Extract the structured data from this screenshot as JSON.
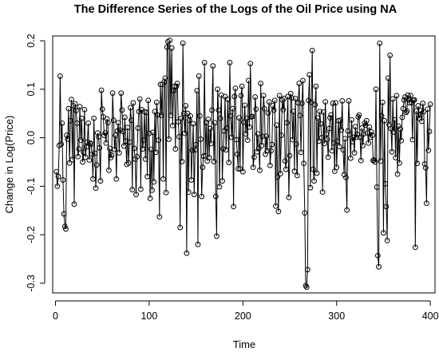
{
  "chart_data": {
    "type": "line",
    "title": "The Difference Series of the Logs of the Oil Price using NA",
    "xlabel": "Time",
    "ylabel": "Change in Log(Price)",
    "xlim": [
      -3,
      405
    ],
    "ylim": [
      -0.32,
      0.21
    ],
    "x_ticks": [
      0,
      100,
      200,
      300,
      400
    ],
    "y_ticks": [
      -0.3,
      -0.2,
      -0.1,
      0.0,
      0.1,
      0.2
    ],
    "x_tick_labels": [
      "0",
      "100",
      "200",
      "300",
      "400"
    ],
    "y_tick_labels": [
      "-0.3",
      "-0.2",
      "-0.1",
      "0.0",
      "0.1",
      "0.2"
    ],
    "grid": false,
    "markers": "open-circle",
    "series": [
      {
        "color": "#000000",
        "x_start": 1,
        "x_step": 1,
        "values": [
          -0.07,
          -0.1,
          -0.08,
          -0.016,
          0.127,
          -0.013,
          0.03,
          -0.087,
          -0.157,
          -0.183,
          -0.188,
          0.005,
          -0.003,
          0.06,
          -0.052,
          0.035,
          0.079,
          -0.045,
          0.066,
          -0.137,
          0.07,
          0.056,
          0.03,
          -0.039,
          -0.023,
          0.064,
          -0.005,
          0.04,
          -0.05,
          -0.03,
          0.058,
          -0.04,
          -0.019,
          -0.009,
          0.03,
          -0.046,
          -0.011,
          -0.013,
          -0.034,
          -0.085,
          0.04,
          -0.032,
          -0.104,
          -0.056,
          0.01,
          0.002,
          -0.021,
          -0.089,
          0.098,
          0.059,
          0.043,
          0.005,
          0.01,
          -0.011,
          0.039,
          0.031,
          -0.067,
          -0.022,
          -0.041,
          -0.036,
          0.092,
          0.036,
          -0.024,
          0.005,
          -0.085,
          0.014,
          0.031,
          -0.031,
          0.016,
          0.092,
          0.057,
          0.013,
          -0.017,
          0.042,
          -0.007,
          -0.055,
          0.021,
          -0.052,
          -0.009,
          0.062,
          0.036,
          -0.107,
          0.072,
          -0.022,
          -0.044,
          -0.117,
          -0.039,
          0.02,
          0.054,
          0.08,
          -0.106,
          0.058,
          -0.023,
          -0.005,
          0.054,
          -0.044,
          0.052,
          -0.08,
          0.077,
          0.009,
          -0.125,
          -0.024,
          -0.108,
          0.011,
          -0.091,
          0.054,
          -0.03,
          0.073,
          0.047,
          -0.005,
          -0.163,
          0.11,
          0.046,
          0.11,
          -0.085,
          0.115,
          0.123,
          -0.113,
          0.187,
          0.198,
          -0.003,
          0.201,
          0.046,
          0.185,
          0.025,
          0.097,
          0.106,
          -0.023,
          0.106,
          0.112,
          0.033,
          0.002,
          -0.185,
          0.04,
          -0.049,
          0.195,
          0.05,
          0.009,
          0.066,
          -0.238,
          0.05,
          -0.112,
          0.036,
          0.045,
          -0.087,
          -0.026,
          0.029,
          -0.117,
          -0.025,
          -0.014,
          0.097,
          -0.22,
          0.127,
          0.045,
          -0.003,
          -0.121,
          -0.061,
          -0.038,
          0.155,
          -0.037,
          0.031,
          -0.048,
          0.038,
          -0.041,
          0.019,
          -0.012,
          0.057,
          0.148,
          -0.049,
          0.031,
          -0.121,
          -0.203,
          0.1,
          0.057,
          -0.101,
          0.04,
          0.088,
          -0.089,
          -0.023,
          0.014,
          0.085,
          -0.025,
          0.02,
          0.079,
          -0.051,
          0.155,
          0.045,
          0.001,
          0.06,
          -0.142,
          0.085,
          0.102,
          -0.004,
          -0.034,
          -0.064,
          0.041,
          -0.064,
          0.087,
          0.106,
          -0.07,
          0.032,
          0.067,
          0.008,
          0.04,
          -0.005,
          0.118,
          0.022,
          0.153,
          0.043,
          0.044,
          -0.061,
          -0.04,
          0.084,
          0.059,
          -0.029,
          0.008,
          -0.022,
          -0.067,
          0.112,
          -0.016,
          0.003,
          0.087,
          0.06,
          -0.034,
          0.003,
          -0.027,
          0.051,
          0.074,
          -0.057,
          -0.027,
          -0.014,
          0.066,
          0.057,
          0.077,
          -0.141,
          0.026,
          -0.081,
          -0.152,
          0.087,
          -0.074,
          0.005,
          0.078,
          0.058,
          0.081,
          -0.048,
          -0.065,
          0.031,
          0.085,
          -0.123,
          -0.037,
          0.091,
          0.082,
          -0.004,
          0.054,
          -0.069,
          0.081,
          -0.013,
          -0.078,
          0.072,
          0.112,
          0.046,
          -0.03,
          0.071,
          0.118,
          -0.053,
          -0.155,
          -0.305,
          -0.308,
          -0.272,
          0.077,
          0.13,
          -0.103,
          0.073,
          0.18,
          -0.065,
          -0.089,
          0.068,
          0.106,
          -0.073,
          0.041,
          -0.007,
          0.054,
          0.029,
          0.0,
          -0.112,
          0.053,
          -0.012,
          0.074,
          0.008,
          -0.003,
          -0.04,
          0.019,
          0.041,
          0.047,
          -0.027,
          0.071,
          -0.011,
          -0.069,
          0.072,
          -0.061,
          -0.007,
          0.035,
          -0.018,
          0.036,
          0.016,
          0.076,
          -0.025,
          -0.076,
          -0.002,
          -0.082,
          -0.149,
          0.014,
          0.076,
          0.006,
          -0.042,
          0.037,
          -0.008,
          0.001,
          -0.031,
          0.023,
          0.001,
          0.007,
          0.043,
          0.047,
          0.001,
          -0.047,
          0.02,
          -0.016,
          0.008,
          0.03,
          0.026,
          0.035,
          0.01,
          -0.011,
          0.022,
          0.001,
          0.012,
          0.005,
          -0.047,
          -0.046,
          -0.05,
          0.1,
          -0.102,
          -0.243,
          -0.266,
          0.195,
          -0.048,
          0.045,
          0.073,
          -0.196,
          0.035,
          -0.095,
          -0.142,
          -0.212,
          0.123,
          0.027,
          0.17,
          0.019,
          -0.029,
          0.08,
          0.012,
          0.037,
          -0.041,
          0.087,
          -0.075,
          0.024,
          -0.052,
          0.018,
          -0.006,
          0.042,
          0.06,
          0.078,
          0.084,
          0.052,
          0.055,
          0.088,
          0.078,
          0.072,
          0.087,
          0.073,
          -0.004,
          0.077,
          0.078,
          -0.226,
          0.055,
          -0.053,
          0.066,
          0.04,
          0.047,
          0.056,
          0.034,
          0.071,
          0.054,
          -0.054,
          -0.062,
          -0.135,
          0.059,
          -0.026,
          0.013,
          0.069
        ]
      }
    ]
  }
}
